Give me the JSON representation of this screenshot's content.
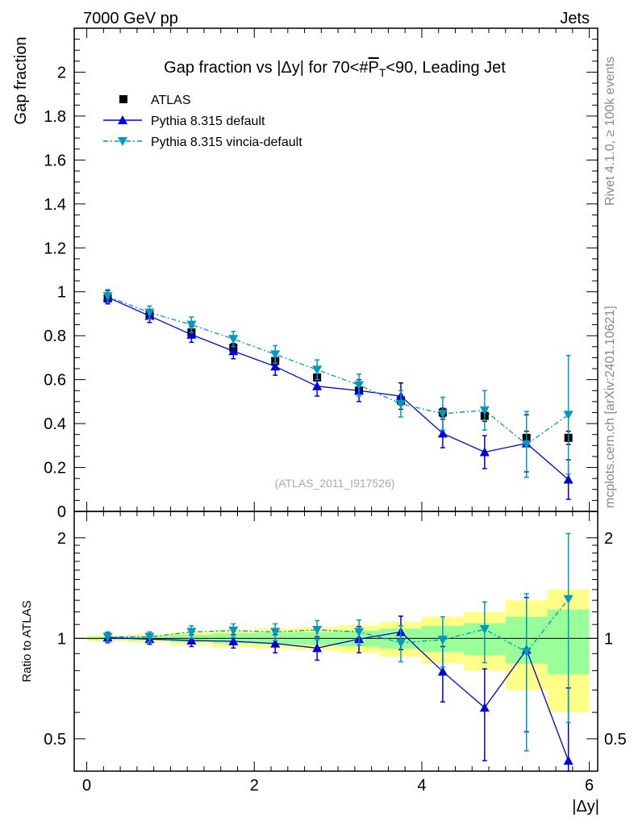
{
  "header": {
    "left": "7000 GeV pp",
    "right": "Jets"
  },
  "side_text": {
    "top": "Rivet 4.1.0, ≥ 100k events",
    "bottom": "mcplots.cern.ch [arXiv:2401.10621]"
  },
  "analysis_id": "(ATLAS_2011_I917526)",
  "colors": {
    "data": "#000000",
    "pythia_default": "#0000dd",
    "pythia_vincia": "#0099bb",
    "band_inner": "#99ff99",
    "band_outer": "#ffff88"
  },
  "chart_data": [
    {
      "type": "scatter",
      "panel": "main",
      "title": "Gap fraction vs |Δy| for 70<#P̅T<90, Leading Jet",
      "title_parts": {
        "prefix": "Gap fraction vs |Δy| for 70<#",
        "p": "P",
        "sub": "T",
        "suffix": "<90, Leading Jet"
      },
      "xlabel": "|Δy|",
      "ylabel": "Gap fraction",
      "xlim": [
        -0.15,
        6.1
      ],
      "ylim": [
        0,
        2.2
      ],
      "xticks": [
        0,
        2,
        4,
        6
      ],
      "yticks": [
        0,
        0.2,
        0.4,
        0.6,
        0.8,
        1,
        1.2,
        1.4,
        1.6,
        1.8,
        2
      ],
      "ytick_labels": [
        "0",
        "0.2",
        "0.4",
        "0.6",
        "0.8",
        "1",
        "1.2",
        "1.4",
        "1.6",
        "1.8",
        "2"
      ],
      "x": [
        0.25,
        0.75,
        1.25,
        1.75,
        2.25,
        2.75,
        3.25,
        3.75,
        4.25,
        4.75,
        5.25,
        5.75
      ],
      "legend_position": "top-left",
      "series": [
        {
          "name": "ATLAS",
          "style": "square",
          "values": [
            0.97,
            0.895,
            0.815,
            0.745,
            0.685,
            0.61,
            0.55,
            0.505,
            0.45,
            0.435,
            0.335,
            0.335
          ],
          "errors": [
            0.01,
            0.01,
            0.01,
            0.015,
            0.015,
            0.015,
            0.015,
            0.02,
            0.02,
            0.025,
            0.03,
            0.03
          ]
        },
        {
          "name": "Pythia 8.315 default",
          "style": "triangle-up",
          "values": [
            0.975,
            0.89,
            0.805,
            0.73,
            0.66,
            0.57,
            0.55,
            0.525,
            0.355,
            0.27,
            0.31,
            0.145
          ],
          "errors": [
            0.03,
            0.03,
            0.035,
            0.035,
            0.04,
            0.045,
            0.05,
            0.06,
            0.065,
            0.075,
            0.13,
            0.09
          ]
        },
        {
          "name": "Pythia 8.315 vincia-default",
          "style": "triangle-down",
          "values": [
            0.98,
            0.905,
            0.85,
            0.785,
            0.715,
            0.645,
            0.575,
            0.49,
            0.445,
            0.46,
            0.305,
            0.44
          ],
          "errors": [
            0.03,
            0.03,
            0.035,
            0.035,
            0.04,
            0.045,
            0.05,
            0.06,
            0.075,
            0.09,
            0.15,
            0.27
          ]
        }
      ]
    },
    {
      "type": "scatter",
      "panel": "ratio",
      "ylabel": "Ratio to ATLAS",
      "xlim": [
        -0.15,
        6.1
      ],
      "ylim": [
        0.4,
        2.4
      ],
      "log_y": true,
      "yticks": [
        0.5,
        1,
        2
      ],
      "ytick_labels": [
        "0.5",
        "1",
        "2"
      ],
      "xticks": [
        0,
        2,
        4,
        6
      ],
      "xtick_labels": [
        "0",
        "2",
        "4",
        "6"
      ],
      "x": [
        0.25,
        0.75,
        1.25,
        1.75,
        2.25,
        2.75,
        3.25,
        3.75,
        4.25,
        4.75,
        5.25,
        5.75
      ],
      "band_inner": [
        0.01,
        0.015,
        0.025,
        0.035,
        0.04,
        0.045,
        0.055,
        0.07,
        0.09,
        0.11,
        0.16,
        0.22
      ],
      "band_outer": [
        0.02,
        0.03,
        0.045,
        0.06,
        0.07,
        0.08,
        0.095,
        0.12,
        0.16,
        0.2,
        0.3,
        0.4
      ],
      "series": [
        {
          "name": "Pythia 8.315 default",
          "style": "triangle-up",
          "values": [
            1.005,
            0.995,
            0.985,
            0.98,
            0.965,
            0.935,
            0.995,
            1.045,
            0.795,
            0.62,
            0.925,
            0.43
          ],
          "errors": [
            0.035,
            0.035,
            0.04,
            0.045,
            0.06,
            0.075,
            0.09,
            0.12,
            0.15,
            0.19,
            0.4,
            0.28
          ]
        },
        {
          "name": "Pythia 8.315 vincia-default",
          "style": "triangle-down",
          "values": [
            1.01,
            1.01,
            1.045,
            1.055,
            1.045,
            1.06,
            1.045,
            0.97,
            0.99,
            1.065,
            0.91,
            1.31
          ],
          "errors": [
            0.035,
            0.035,
            0.045,
            0.05,
            0.06,
            0.07,
            0.09,
            0.12,
            0.17,
            0.22,
            0.45,
            0.75
          ]
        }
      ]
    }
  ]
}
